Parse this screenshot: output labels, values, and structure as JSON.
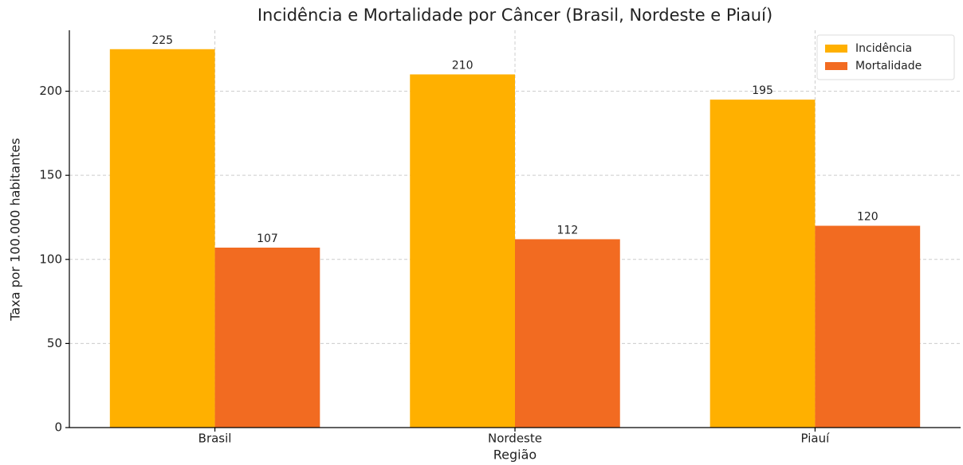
{
  "chart_data": {
    "type": "bar",
    "title": "Incidência e Mortalidade por Câncer (Brasil, Nordeste e Piauí)",
    "x_label": "Região",
    "y_label": "Taxa por 100.000 habitantes",
    "categories": [
      "Brasil",
      "Nordeste",
      "Piauí"
    ],
    "series": [
      {
        "name": "Incidência",
        "color": "#ffb000",
        "values": [
          225,
          210,
          195
        ]
      },
      {
        "name": "Mortalidade",
        "color": "#f26b21",
        "values": [
          107,
          112,
          120
        ]
      }
    ],
    "ylim": [
      0,
      236.25
    ],
    "yticks": [
      0,
      50,
      100,
      150,
      200
    ],
    "grid": true,
    "legend": "upper right"
  }
}
